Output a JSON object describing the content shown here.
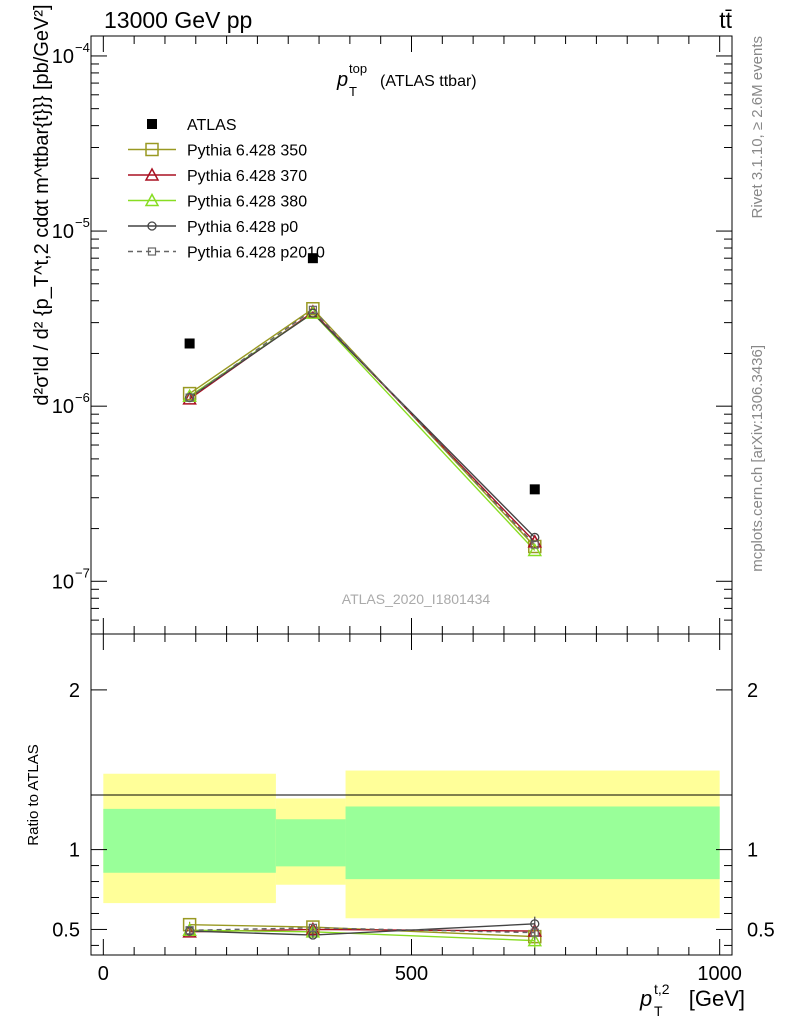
{
  "header": {
    "left": "13000 GeV pp",
    "right": "tt̄"
  },
  "side_labels": {
    "rivet": "Rivet 3.1.10, ≥ 2.6M events",
    "mcplots": "mcplots.cern.ch [arXiv:1306.3436]"
  },
  "colors": {
    "ATLAS": "#000000",
    "Pythia 6.428 350": "#999922",
    "Pythia 6.428 370": "#aa1122",
    "Pythia 6.428 380": "#88dd22",
    "Pythia 6.428 p0": "#444444",
    "Pythia 6.428 p2010": "#666666",
    "band_inner": "#99ff99",
    "band_outer": "#ffff99"
  },
  "chart_data": [
    {
      "type": "scatter",
      "title_main": "p",
      "title_sup": "top",
      "title_sub": "T",
      "title_rest": "(ATLAS ttbar)",
      "watermark": "ATLAS_2020_I1801434",
      "ylabel": "d²σ'ld / d² {p_T^t,2 cdαt m^ttbar{t}}} [pb/GeV²]",
      "yscale": "log",
      "ylim": [
        5e-08,
        0.00013
      ],
      "xlim": [
        -20,
        1020
      ],
      "ytick_labels": [
        {
          "value": 1e-07,
          "base": "10",
          "exp": "−7"
        },
        {
          "value": 1e-06,
          "base": "10",
          "exp": "−6"
        },
        {
          "value": 1e-05,
          "base": "10",
          "exp": "−5"
        },
        {
          "value": 0.0001,
          "base": "10",
          "exp": "−4"
        }
      ],
      "legend_position": "top-left",
      "x": [
        140,
        340,
        700
      ],
      "series": [
        {
          "name": "ATLAS",
          "marker": "filled-square",
          "values": [
            2.28e-06,
            7e-06,
            3.35e-07
          ]
        },
        {
          "name": "Pythia 6.428 350",
          "marker": "open-square",
          "values": [
            1.18e-06,
            3.6e-06,
            1.58e-07
          ]
        },
        {
          "name": "Pythia 6.428 370",
          "marker": "open-triangle",
          "values": [
            1.1e-06,
            3.45e-06,
            1.68e-07
          ]
        },
        {
          "name": "Pythia 6.428 380",
          "marker": "open-triangle",
          "values": [
            1.14e-06,
            3.4e-06,
            1.5e-07
          ]
        },
        {
          "name": "Pythia 6.428 p0",
          "marker": "open-circle",
          "values": [
            1.12e-06,
            3.4e-06,
            1.78e-07
          ]
        },
        {
          "name": "Pythia 6.428 p2010",
          "marker": "small-open-square",
          "dashed": true,
          "values": [
            1.12e-06,
            3.55e-06,
            1.62e-07
          ]
        }
      ]
    },
    {
      "type": "scatter",
      "ylabel": "Ratio to ATLAS",
      "xlabel_main": "p",
      "xlabel_sup": "t,2",
      "xlabel_sub": "T",
      "xlabel_unit": "[GeV]",
      "xlim": [
        -20,
        1020
      ],
      "ylim": [
        0.34,
        2.35
      ],
      "xtick_labels": [
        "0",
        "500",
        "1000"
      ],
      "ytick_labels": [
        "0.5",
        "1",
        "2"
      ],
      "reference_line": 1,
      "bins": [
        {
          "x_low": 0,
          "x_high": 280,
          "inner": [
            0.855,
            1.255
          ],
          "outer": [
            0.665,
            1.475
          ]
        },
        {
          "x_low": 280,
          "x_high": 393,
          "inner": [
            0.895,
            1.19
          ],
          "outer": [
            0.78,
            1.32
          ]
        },
        {
          "x_low": 393,
          "x_high": 1000,
          "inner": [
            0.815,
            1.27
          ],
          "outer": [
            0.57,
            1.495
          ]
        }
      ],
      "x": [
        140,
        340,
        700
      ],
      "series": [
        {
          "name": "Pythia 6.428 350",
          "values": [
            0.53,
            0.515,
            0.455
          ]
        },
        {
          "name": "Pythia 6.428 370",
          "values": [
            0.485,
            0.5,
            0.49
          ]
        },
        {
          "name": "Pythia 6.428 380",
          "values": [
            0.495,
            0.485,
            0.43
          ]
        },
        {
          "name": "Pythia 6.428 p0",
          "values": [
            0.49,
            0.465,
            0.535
          ]
        },
        {
          "name": "Pythia 6.428 p2010",
          "values": [
            0.495,
            0.51,
            0.48
          ]
        }
      ]
    }
  ]
}
